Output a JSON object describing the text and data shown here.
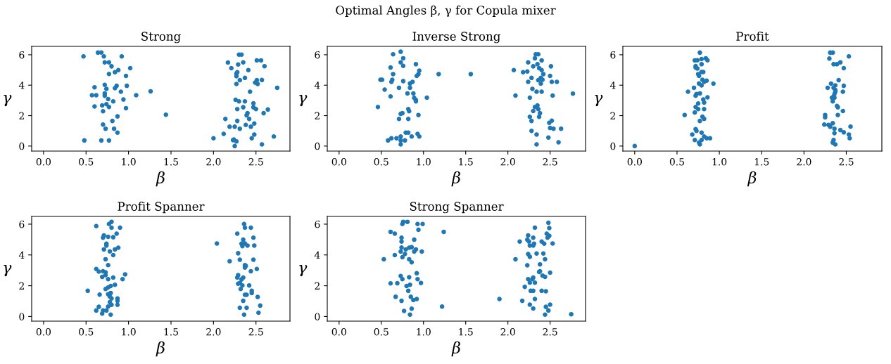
{
  "chart_data": [
    {
      "type": "scatter",
      "title": "Strong",
      "xlabel": "β",
      "ylabel": "γ",
      "annotations": [
        "Optimal Angles β, γ for Copula mixer"
      ],
      "marker": "circle",
      "grid": false,
      "xlim": [
        -0.14,
        2.9
      ],
      "ylim": [
        -0.33,
        6.55
      ],
      "xticks": [
        {
          "value": 0,
          "label": "0.0"
        },
        {
          "value": 0.5,
          "label": "0.5"
        },
        {
          "value": 1,
          "label": "1.0"
        },
        {
          "value": 1.5,
          "label": "1.5"
        },
        {
          "value": 2,
          "label": "2.0"
        },
        {
          "value": 2.5,
          "label": "2.5"
        }
      ],
      "yticks": [
        0,
        2,
        4,
        6
      ],
      "series": [
        {
          "color": "#1f77b4",
          "x": [
            0.47,
            0.64,
            0.68,
            0.71,
            0.92,
            0.72,
            0.77,
            0.8,
            1.02,
            0.88,
            0.84,
            0.77,
            0.97,
            0.6,
            0.72,
            0.74,
            0.86,
            0.84,
            0.98,
            0.91,
            1.26,
            0.57,
            0.62,
            0.72,
            0.72,
            0.76,
            0.82,
            0.94,
            1.09,
            0.6,
            0.69,
            0.74,
            0.77,
            0.7,
            0.97,
            1.44,
            0.87,
            0.81,
            0.7,
            0.73,
            0.83,
            0.87,
            0.48,
            0.68,
            0.77,
            2.3,
            2.33,
            2.17,
            2.35,
            2.51,
            2.56,
            2.6,
            2.21,
            2.29,
            2.41,
            2.27,
            2.28,
            2.27,
            2.37,
            2.31,
            2.51,
            2.57,
            2.49,
            2.52,
            2.27,
            2.75,
            2.43,
            2.26,
            2.3,
            2.37,
            2.47,
            2.35,
            2.47,
            2.5,
            2.28,
            2.64,
            2.59,
            2.4,
            2.39,
            2.42,
            2.14,
            2.28,
            2.38,
            2.48,
            2.19,
            2.25,
            2.44,
            2.31,
            2.12,
            2.48,
            2.45,
            2.71,
            2.0,
            2.23,
            2.24,
            2.27,
            2.25,
            2.57
          ],
          "values": [
            5.89,
            6.14,
            6.15,
            5.89,
            5.89,
            5.5,
            5.5,
            5.24,
            5.12,
            4.99,
            4.85,
            4.74,
            4.61,
            3.86,
            4.02,
            3.76,
            3.96,
            3.8,
            3.96,
            3.57,
            3.6,
            3.34,
            3.34,
            3.46,
            3.31,
            3.09,
            2.94,
            3.06,
            3.34,
            2.6,
            2.67,
            2.75,
            2.57,
            2.29,
            2.49,
            2.06,
            1.95,
            1.65,
            1.41,
            1.14,
            1.14,
            0.88,
            0.37,
            0.37,
            0.37,
            6.01,
            6.01,
            5.49,
            5.5,
            5.63,
            5.63,
            5.25,
            5.12,
            5.36,
            4.99,
            4.76,
            4.85,
            4.59,
            4.48,
            4.33,
            4.33,
            4.34,
            4.17,
            4.08,
            4.08,
            3.83,
            3.57,
            3.04,
            2.94,
            2.94,
            2.81,
            2.55,
            2.55,
            2.43,
            2.43,
            2.4,
            2.16,
            2.16,
            2.02,
            1.78,
            1.78,
            1.65,
            1.39,
            1.48,
            1.27,
            1.27,
            1.27,
            1.14,
            0.8,
            0.76,
            0.51,
            0.63,
            0.51,
            0.39,
            0.43,
            0.31,
            0.0,
            0.11
          ]
        }
      ]
    },
    {
      "type": "scatter",
      "title": "Inverse Strong",
      "xlabel": "β",
      "ylabel": "γ",
      "marker": "circle",
      "grid": false,
      "xlim": [
        -0.14,
        2.92
      ],
      "ylim": [
        -0.33,
        6.55
      ],
      "xticks": [
        {
          "value": 0,
          "label": "0.0"
        },
        {
          "value": 0.5,
          "label": "0.5"
        },
        {
          "value": 1,
          "label": "1.0"
        },
        {
          "value": 1.5,
          "label": "1.5"
        },
        {
          "value": 2,
          "label": "2.0"
        },
        {
          "value": 2.5,
          "label": "2.5"
        }
      ],
      "yticks": [
        0,
        2,
        4,
        6
      ],
      "series": [
        {
          "color": "#1f77b4",
          "x": [
            0.73,
            0.64,
            0.73,
            0.76,
            0.76,
            0.61,
            0.91,
            0.95,
            0.94,
            0.92,
            0.64,
            1.18,
            1.56,
            0.49,
            0.51,
            0.63,
            0.62,
            0.76,
            0.84,
            0.87,
            0.71,
            0.84,
            0.54,
            0.81,
            0.88,
            0.61,
            0.89,
            1.04,
            0.91,
            0.91,
            0.46,
            0.82,
            0.83,
            0.75,
            0.73,
            0.94,
            0.71,
            0.82,
            0.79,
            0.82,
            0.93,
            0.95,
            0.86,
            0.73,
            0.62,
            0.68,
            0.58,
            0.73,
            0.78,
            0.73,
            2.33,
            2.36,
            2.32,
            2.4,
            2.24,
            2.35,
            2.3,
            2.51,
            2.37,
            2.4,
            2.07,
            2.18,
            2.23,
            2.5,
            2.42,
            2.39,
            2.28,
            2.41,
            2.36,
            2.24,
            2.52,
            2.58,
            2.39,
            2.29,
            2.34,
            2.4,
            2.09,
            2.53,
            2.77,
            2.26,
            2.32,
            2.35,
            2.36,
            2.3,
            2.38,
            2.37,
            2.26,
            2.28,
            2.49,
            2.52,
            2.5,
            2.54,
            2.63,
            2.28,
            2.34,
            2.48,
            2.34,
            2.6
          ],
          "values": [
            6.2,
            6.03,
            5.5,
            5.77,
            5.27,
            5.16,
            5.38,
            4.96,
            4.73,
            4.61,
            4.73,
            4.73,
            4.73,
            4.36,
            4.36,
            4.36,
            4.22,
            4.27,
            4.11,
            4.22,
            3.83,
            3.83,
            3.71,
            3.46,
            3.46,
            3.26,
            3.17,
            3.18,
            3.03,
            2.94,
            2.57,
            2.43,
            2.29,
            2.16,
            2.12,
            2.04,
            1.78,
            1.78,
            0.88,
            0.88,
            0.8,
            0.63,
            0.63,
            0.63,
            0.51,
            0.51,
            0.37,
            0.37,
            0.37,
            0.11,
            6.03,
            6.03,
            5.77,
            5.63,
            5.5,
            5.38,
            5.24,
            5.24,
            5.12,
            4.99,
            4.99,
            4.85,
            4.9,
            4.61,
            4.73,
            4.48,
            4.48,
            4.36,
            4.33,
            4.22,
            4.22,
            4.22,
            4.1,
            3.76,
            3.57,
            3.57,
            3.32,
            3.32,
            3.45,
            3.18,
            2.57,
            2.67,
            2.43,
            2.3,
            2.16,
            1.92,
            1.92,
            1.65,
            1.53,
            1.67,
            1.19,
            1.14,
            1.14,
            1.0,
            0.76,
            0.56,
            0.11,
            0.25
          ]
        }
      ]
    },
    {
      "type": "scatter",
      "title": "Profit",
      "xlabel": "β",
      "ylabel": "γ",
      "marker": "circle",
      "grid": false,
      "xlim": [
        -0.14,
        2.92
      ],
      "ylim": [
        -0.33,
        6.55
      ],
      "xticks": [
        {
          "value": 0,
          "label": "0.0"
        },
        {
          "value": 0.5,
          "label": "0.5"
        },
        {
          "value": 1,
          "label": "1.0"
        },
        {
          "value": 1.5,
          "label": "1.5"
        },
        {
          "value": 2,
          "label": "2.0"
        },
        {
          "value": 2.5,
          "label": "2.5"
        }
      ],
      "yticks": [
        0,
        2,
        4,
        6
      ],
      "series": [
        {
          "color": "#1f77b4",
          "x": [
            0.0,
            0.77,
            0.71,
            0.74,
            0.79,
            0.84,
            0.86,
            0.79,
            0.72,
            0.72,
            0.74,
            0.79,
            0.81,
            0.75,
            0.76,
            0.8,
            0.85,
            0.82,
            0.76,
            0.79,
            0.93,
            0.7,
            0.63,
            0.77,
            0.73,
            0.72,
            0.86,
            0.81,
            0.82,
            0.75,
            0.72,
            0.75,
            0.82,
            0.71,
            0.59,
            0.8,
            0.82,
            0.77,
            0.72,
            0.73,
            0.79,
            0.68,
            0.82,
            0.71,
            0.79,
            0.85,
            0.89,
            0.76,
            0.77,
            2.31,
            2.34,
            2.53,
            2.3,
            2.35,
            2.39,
            2.43,
            2.47,
            2.41,
            2.32,
            2.37,
            2.47,
            2.28,
            2.35,
            2.37,
            2.37,
            2.46,
            2.36,
            2.35,
            2.33,
            2.36,
            2.34,
            2.39,
            2.4,
            2.46,
            2.4,
            2.25,
            2.25,
            2.24,
            2.29,
            2.34,
            2.31,
            2.36,
            2.36,
            2.43,
            2.47,
            2.55,
            2.53,
            2.54,
            2.35,
            2.34,
            2.37
          ],
          "values": [
            0.0,
            6.14,
            5.63,
            5.64,
            5.72,
            5.77,
            5.64,
            5.38,
            5.26,
            5.16,
            5.1,
            4.87,
            4.87,
            4.73,
            4.61,
            4.36,
            4.3,
            4.22,
            4.11,
            3.99,
            4.1,
            3.83,
            3.57,
            3.46,
            3.42,
            3.31,
            3.2,
            3.06,
            2.86,
            2.8,
            2.57,
            2.43,
            2.43,
            2.21,
            2.04,
            1.93,
            1.79,
            1.65,
            1.11,
            1.0,
            0.88,
            0.76,
            0.63,
            0.4,
            0.4,
            0.51,
            0.51,
            0.23,
            0.11,
            6.14,
            6.14,
            5.89,
            5.75,
            5.38,
            5.38,
            5.5,
            5.12,
            4.33,
            4.1,
            3.99,
            3.96,
            3.83,
            3.83,
            3.69,
            3.57,
            3.57,
            3.42,
            3.26,
            3.18,
            3.18,
            2.94,
            2.64,
            2.55,
            2.3,
            2.04,
            2.04,
            1.89,
            1.41,
            1.39,
            1.5,
            1.27,
            1.14,
            0.85,
            1.05,
            0.9,
            1.28,
            0.76,
            0.51,
            0.4,
            0.23,
            0.11
          ]
        }
      ]
    },
    {
      "type": "scatter",
      "title": "Profit Spanner",
      "xlabel": "β",
      "ylabel": "γ",
      "marker": "circle",
      "grid": false,
      "xlim": [
        -0.14,
        2.9
      ],
      "ylim": [
        -0.3,
        6.5
      ],
      "xticks": [
        {
          "value": 0,
          "label": "0.0"
        },
        {
          "value": 0.5,
          "label": "0.5"
        },
        {
          "value": 1,
          "label": "1.0"
        },
        {
          "value": 1.5,
          "label": "1.5"
        },
        {
          "value": 2,
          "label": "2.0"
        },
        {
          "value": 2.5,
          "label": "2.5"
        }
      ],
      "yticks": [
        0,
        2,
        4,
        6
      ],
      "series": [
        {
          "color": "#1f77b4",
          "x": [
            0.8,
            0.77,
            0.62,
            0.8,
            0.9,
            0.86,
            0.71,
            0.76,
            0.7,
            0.82,
            0.74,
            0.74,
            0.88,
            0.84,
            0.71,
            0.78,
            0.82,
            0.73,
            0.76,
            0.62,
            0.65,
            0.7,
            0.73,
            0.69,
            0.73,
            0.82,
            0.96,
            0.93,
            0.76,
            0.84,
            0.79,
            0.76,
            0.73,
            0.52,
            0.79,
            0.76,
            0.66,
            0.78,
            0.8,
            0.87,
            0.87,
            0.78,
            0.8,
            0.87,
            0.76,
            0.65,
            0.62,
            0.7,
            0.74,
            0.69,
            0.79,
            2.36,
            2.37,
            2.44,
            2.28,
            2.35,
            2.47,
            2.04,
            2.33,
            2.37,
            2.34,
            2.4,
            2.48,
            2.29,
            2.19,
            2.31,
            2.47,
            2.37,
            2.37,
            2.38,
            2.51,
            2.44,
            2.29,
            2.28,
            2.35,
            2.33,
            2.29,
            2.31,
            2.34,
            2.42,
            2.32,
            2.45,
            2.45,
            2.37,
            2.39,
            2.52,
            2.35,
            2.31,
            2.39,
            2.55,
            2.53,
            2.36
          ],
          "values": [
            6.15,
            6.01,
            5.87,
            5.77,
            5.77,
            5.38,
            5.27,
            5.18,
            5.12,
            5.15,
            4.73,
            4.61,
            4.47,
            4.36,
            4.36,
            4.23,
            3.99,
            3.72,
            3.34,
            3.09,
            2.92,
            2.94,
            2.87,
            2.57,
            2.69,
            2.53,
            2.74,
            2.43,
            2.43,
            2.06,
            1.98,
            1.89,
            1.79,
            1.67,
            1.53,
            1.45,
            1.42,
            1.3,
            1.17,
            1.17,
            1.02,
            0.93,
            0.76,
            0.76,
            0.65,
            0.63,
            0.39,
            0.39,
            0.39,
            0.19,
            0.12,
            6.01,
            5.77,
            5.77,
            5.38,
            4.99,
            5.12,
            4.74,
            4.73,
            4.74,
            4.57,
            4.61,
            4.61,
            4.11,
            3.59,
            3.69,
            3.69,
            3.34,
            3.18,
            3.29,
            3.09,
            2.94,
            2.69,
            2.53,
            2.53,
            2.41,
            2.13,
            2.18,
            2.02,
            2.02,
            1.79,
            1.67,
            1.53,
            1.41,
            1.41,
            1.27,
            1.02,
            0.57,
            0.57,
            0.71,
            0.25,
            0.12
          ]
        }
      ]
    },
    {
      "type": "scatter",
      "title": "Strong Spanner",
      "xlabel": "β",
      "ylabel": "γ",
      "marker": "circle",
      "grid": false,
      "xlim": [
        -0.14,
        2.92
      ],
      "ylim": [
        -0.3,
        6.5
      ],
      "xticks": [
        {
          "value": 0,
          "label": "0.0"
        },
        {
          "value": 0.5,
          "label": "0.5"
        },
        {
          "value": 1,
          "label": "1.0"
        },
        {
          "value": 1.5,
          "label": "1.5"
        },
        {
          "value": 2,
          "label": "2.0"
        },
        {
          "value": 2.5,
          "label": "2.5"
        }
      ],
      "yticks": [
        0,
        2,
        4,
        6
      ],
      "series": [
        {
          "color": "#1f77b4",
          "x": [
            0.76,
            0.81,
            0.75,
            0.93,
            0.99,
            0.94,
            0.61,
            0.66,
            1.24,
            0.89,
            0.74,
            0.74,
            0.74,
            0.86,
            0.83,
            0.91,
            0.79,
            0.73,
            0.89,
            0.98,
            0.78,
            0.66,
            0.75,
            0.83,
            0.86,
            0.53,
            0.92,
            0.73,
            0.83,
            0.75,
            0.93,
            0.97,
            0.61,
            0.69,
            0.84,
            0.8,
            0.82,
            0.67,
            0.85,
            0.88,
            0.92,
            0.74,
            1.22,
            0.86,
            0.77,
            0.84,
            2.48,
            2.49,
            2.32,
            2.24,
            2.46,
            2.49,
            2.47,
            2.3,
            2.14,
            2.23,
            2.25,
            2.31,
            2.4,
            2.43,
            2.53,
            2.26,
            2.3,
            2.24,
            2.34,
            2.42,
            2.26,
            2.09,
            2.44,
            2.38,
            2.23,
            2.37,
            2.38,
            2.5,
            2.41,
            2.44,
            2.3,
            2.29,
            2.24,
            2.26,
            2.32,
            2.2,
            2.27,
            2.3,
            2.4,
            2.45,
            2.32,
            1.9,
            2.17,
            2.26,
            2.5,
            2.45,
            2.48,
            2.3,
            2.44,
            2.75
          ],
          "values": [
            6.15,
            6.15,
            6.01,
            6.01,
            6.01,
            5.63,
            5.5,
            5.38,
            5.5,
            4.99,
            5.12,
            4.87,
            4.48,
            4.5,
            4.47,
            4.36,
            4.36,
            4.22,
            4.22,
            4.22,
            4.06,
            3.99,
            3.85,
            3.72,
            3.52,
            3.72,
            2.81,
            2.63,
            2.55,
            2.43,
            2.43,
            2.18,
            2.15,
            2.16,
            2.06,
            1.98,
            1.67,
            1.28,
            1.28,
            1.07,
            1.14,
            1.02,
            0.65,
            0.51,
            0.36,
            0.12,
            6.09,
            5.75,
            5.77,
            5.27,
            5.38,
            5.24,
            5.12,
            5.12,
            4.87,
            4.99,
            4.87,
            4.73,
            4.87,
            4.73,
            4.74,
            4.61,
            4.61,
            4.06,
            4.09,
            4.09,
            3.88,
            3.72,
            3.72,
            3.39,
            3.33,
            2.9,
            2.94,
            2.85,
            2.66,
            2.58,
            2.53,
            2.43,
            2.43,
            2.2,
            2.2,
            1.93,
            1.67,
            1.67,
            1.67,
            1.64,
            1.14,
            1.14,
            1.02,
            0.77,
            0.77,
            0.63,
            0.39,
            0.52,
            0.12,
            0.15
          ]
        }
      ]
    }
  ]
}
